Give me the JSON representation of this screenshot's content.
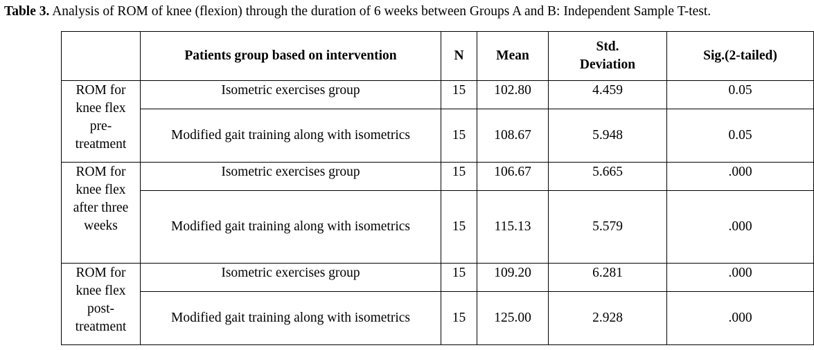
{
  "caption": {
    "label": "Table 3.",
    "text": " Analysis of ROM of knee (flexion) through the duration of 6 weeks between Groups A and B: Independent Sample T-test."
  },
  "headers": {
    "blank": "",
    "group": "Patients group based on intervention",
    "n": "N",
    "mean": "Mean",
    "sd": "Std. Deviation",
    "sig": "Sig.(2-tailed)"
  },
  "sections": [
    {
      "label": "ROM for knee flex pre-treatment",
      "rows": [
        {
          "group": "Isometric exercises group",
          "n": "15",
          "mean": "102.80",
          "sd": "4.459",
          "sig": "0.05"
        },
        {
          "group": "Modified gait training along with isometrics",
          "n": "15",
          "mean": "108.67",
          "sd": "5.948",
          "sig": "0.05"
        }
      ]
    },
    {
      "label": "ROM for knee flex after three weeks",
      "rows": [
        {
          "group": "Isometric exercises group",
          "n": "15",
          "mean": "106.67",
          "sd": "5.665",
          "sig": ".000"
        },
        {
          "group": "Modified gait training along with isometrics",
          "n": "15",
          "mean": "115.13",
          "sd": "5.579",
          "sig": ".000"
        }
      ]
    },
    {
      "label": "ROM for knee flex post-treatment",
      "rows": [
        {
          "group": "Isometric exercises group",
          "n": "15",
          "mean": "109.20",
          "sd": "6.281",
          "sig": ".000"
        },
        {
          "group": "Modified gait training along with isometrics",
          "n": "15",
          "mean": "125.00",
          "sd": "2.928",
          "sig": ".000"
        }
      ]
    }
  ]
}
